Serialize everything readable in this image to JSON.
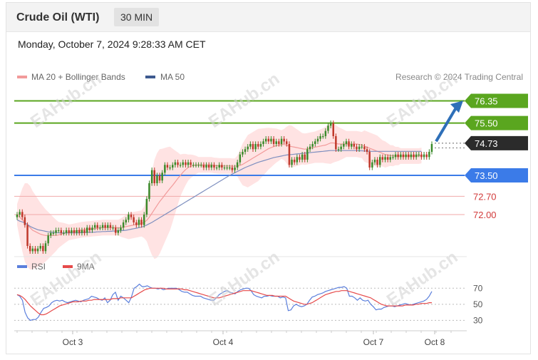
{
  "header": {
    "title": "Crude Oil (WTI)",
    "timeframe": "30 MIN",
    "datetime": "Monday, October 7, 2024 9:28:33 AM CET"
  },
  "legend": {
    "ma20": "MA 20 + Bollinger Bands",
    "ma50": "MA 50",
    "credit": "Research © 2024 Trading Central",
    "rsi": "RSI",
    "rsi_ma": "9MA"
  },
  "watermark": "EAHub.cn",
  "colors": {
    "resistance": "#5aa61f",
    "support": "#3b7be8",
    "last_price": "#2b2b2b",
    "minor_levels": "#f0a9a9",
    "minor_text": "#d23a3a",
    "bollinger_fill": "#ffe3e3",
    "ma20": "#f29a9a",
    "ma50": "#7e8fbf",
    "candle_up": "#3a8a2a",
    "candle_down": "#c0392b",
    "arrow": "#2e6fb8",
    "rsi_line": "#5b7fdc",
    "rsi_ma_line": "#e64a4a"
  },
  "chart_data": [
    {
      "type": "candlestick",
      "ylim": [
        70.8,
        76.8
      ],
      "xticks": [
        "Oct 3",
        "Oct 4",
        "Oct 7",
        "Oct 8"
      ],
      "levels": [
        {
          "value": 76.35,
          "label": "76.35",
          "kind": "resistance"
        },
        {
          "value": 75.5,
          "label": "75.50",
          "kind": "resistance"
        },
        {
          "value": 74.73,
          "label": "74.73",
          "kind": "last"
        },
        {
          "value": 73.5,
          "label": "73.50",
          "kind": "support"
        },
        {
          "value": 72.7,
          "label": "72.70",
          "kind": "minor"
        },
        {
          "value": 72.0,
          "label": "72.00",
          "kind": "minor"
        }
      ],
      "close": [
        72.0,
        72.1,
        71.9,
        71.6,
        70.8,
        70.6,
        70.7,
        70.6,
        70.7,
        70.8,
        70.6,
        70.9,
        71.2,
        71.3,
        71.3,
        71.4,
        71.4,
        71.3,
        71.3,
        71.4,
        71.3,
        71.4,
        71.3,
        71.4,
        71.3,
        71.4,
        71.3,
        71.5,
        71.4,
        71.5,
        71.6,
        71.5,
        71.5,
        71.6,
        71.5,
        71.6,
        71.5,
        71.5,
        71.3,
        71.4,
        71.5,
        71.7,
        71.8,
        72.0,
        71.9,
        71.7,
        71.6,
        71.8,
        71.6,
        72.0,
        72.6,
        73.2,
        73.7,
        73.2,
        73.5,
        73.3,
        73.6,
        73.9,
        73.8,
        73.8,
        73.9,
        74.0,
        73.9,
        73.9,
        74.0,
        73.9,
        74.0,
        73.9,
        73.9,
        73.9,
        73.9,
        73.9,
        73.8,
        73.9,
        73.8,
        73.9,
        73.8,
        73.8,
        73.9,
        73.8,
        73.8,
        73.8,
        73.8,
        73.7,
        73.8,
        74.0,
        74.3,
        74.4,
        74.5,
        74.6,
        74.7,
        74.5,
        74.7,
        74.6,
        74.7,
        74.8,
        74.9,
        74.8,
        74.9,
        74.7,
        74.8,
        74.7,
        74.9,
        74.8,
        74.7,
        73.9,
        74.1,
        74.0,
        74.2,
        74.1,
        74.3,
        74.1,
        74.5,
        74.6,
        74.7,
        74.8,
        74.9,
        75.0,
        75.0,
        75.2,
        75.4,
        75.5,
        75.0,
        74.5,
        74.5,
        74.6,
        74.7,
        74.8,
        74.6,
        74.7,
        74.6,
        74.5,
        74.6,
        74.6,
        74.5,
        74.4,
        73.8,
        74.0,
        74.1,
        73.9,
        74.2,
        74.1,
        74.2,
        74.1,
        74.2,
        74.2,
        74.3,
        74.2,
        74.3,
        74.2,
        74.3,
        74.2,
        74.3,
        74.2,
        74.3,
        74.3,
        74.2,
        74.3,
        74.2,
        74.4,
        74.7
      ],
      "ma20": [
        72.0,
        71.9,
        71.8,
        71.7,
        71.6,
        71.5,
        71.4,
        71.35,
        71.3,
        71.25,
        71.22,
        71.2,
        71.2,
        71.2,
        71.2,
        71.2,
        71.22,
        71.25,
        71.28,
        71.3,
        71.32,
        71.34,
        71.36,
        71.38,
        71.4,
        71.42,
        71.43,
        71.44,
        71.45,
        71.46,
        71.47,
        71.48,
        71.49,
        71.5,
        71.5,
        71.5,
        71.5,
        71.5,
        71.5,
        71.5,
        71.5,
        71.52,
        71.54,
        71.56,
        71.58,
        71.6,
        71.62,
        71.64,
        71.66,
        71.7,
        71.78,
        71.9,
        72.05,
        72.2,
        72.35,
        72.5,
        72.62,
        72.75,
        72.88,
        73.0,
        73.12,
        73.25,
        73.38,
        73.5,
        73.62,
        73.72,
        73.8,
        73.85,
        73.88,
        73.9,
        73.9,
        73.9,
        73.9,
        73.9,
        73.9,
        73.9,
        73.88,
        73.87,
        73.86,
        73.86,
        73.86,
        73.86,
        73.86,
        73.85,
        73.85,
        73.86,
        73.88,
        73.92,
        73.98,
        74.04,
        74.1,
        74.16,
        74.22,
        74.28,
        74.34,
        74.4,
        74.46,
        74.52,
        74.56,
        74.6,
        74.64,
        74.66,
        74.68,
        74.68,
        74.66,
        74.62,
        74.6,
        74.58,
        74.56,
        74.54,
        74.52,
        74.5,
        74.52,
        74.54,
        74.56,
        74.58,
        74.6,
        74.62,
        74.64,
        74.66,
        74.7,
        74.74,
        74.74,
        74.72,
        74.7,
        74.7,
        74.7,
        74.7,
        74.7,
        74.7,
        74.7,
        74.7,
        74.68,
        74.66,
        74.62,
        74.58,
        74.54,
        74.5,
        74.46,
        74.42,
        74.38,
        74.34,
        74.3,
        74.28,
        74.26,
        74.25,
        74.24,
        74.24,
        74.24,
        74.24,
        74.24,
        74.24,
        74.24,
        74.24,
        74.24,
        74.24,
        74.26
      ],
      "ma50": [
        71.8,
        71.75,
        71.72,
        71.68,
        71.62,
        71.55,
        71.5,
        71.46,
        71.42,
        71.4,
        71.38,
        71.36,
        71.34,
        71.33,
        71.32,
        71.31,
        71.3,
        71.3,
        71.3,
        71.3,
        71.3,
        71.3,
        71.3,
        71.3,
        71.3,
        71.31,
        71.31,
        71.32,
        71.32,
        71.33,
        71.33,
        71.34,
        71.34,
        71.35,
        71.35,
        71.36,
        71.36,
        71.37,
        71.37,
        71.38,
        71.38,
        71.39,
        71.4,
        71.42,
        71.44,
        71.46,
        71.48,
        71.5,
        71.52,
        71.55,
        71.6,
        71.65,
        71.7,
        71.76,
        71.82,
        71.88,
        71.94,
        72.0,
        72.06,
        72.12,
        72.18,
        72.24,
        72.3,
        72.36,
        72.42,
        72.48,
        72.54,
        72.6,
        72.66,
        72.72,
        72.78,
        72.84,
        72.9,
        72.96,
        73.02,
        73.08,
        73.14,
        73.2,
        73.26,
        73.32,
        73.38,
        73.44,
        73.5,
        73.55,
        73.6,
        73.65,
        73.7,
        73.75,
        73.8,
        73.84,
        73.88,
        73.92,
        73.96,
        74.0,
        74.03,
        74.06,
        74.09,
        74.12,
        74.15,
        74.18,
        74.2,
        74.22,
        74.24,
        74.26,
        74.28,
        74.29,
        74.3,
        74.31,
        74.32,
        74.33,
        74.34,
        74.35,
        74.36,
        74.37,
        74.38,
        74.39,
        74.4,
        74.41,
        74.42,
        74.43,
        74.44,
        74.45,
        74.45,
        74.45,
        74.45,
        74.45,
        74.45,
        74.45,
        74.45,
        74.45,
        74.45,
        74.45,
        74.44,
        74.44,
        74.43,
        74.43,
        74.42,
        74.42,
        74.42,
        74.42,
        74.42,
        74.42,
        74.42,
        74.42,
        74.42,
        74.42,
        74.42,
        74.42,
        74.42,
        74.42,
        74.42,
        74.42,
        74.42,
        74.42,
        74.42,
        74.42,
        74.42
      ],
      "bb_width": [
        0.4,
        0.8,
        1.2,
        1.5,
        1.6,
        1.6,
        1.5,
        1.4,
        1.3,
        1.2,
        1.1,
        1.0,
        0.9,
        0.8,
        0.7,
        0.6,
        0.5,
        0.45,
        0.4,
        0.35,
        0.3,
        0.3,
        0.3,
        0.3,
        0.3,
        0.3,
        0.3,
        0.3,
        0.3,
        0.3,
        0.3,
        0.3,
        0.3,
        0.3,
        0.3,
        0.3,
        0.3,
        0.3,
        0.3,
        0.3,
        0.35,
        0.4,
        0.45,
        0.5,
        0.5,
        0.5,
        0.5,
        0.5,
        0.5,
        0.6,
        0.8,
        1.2,
        1.6,
        1.9,
        2.0,
        2.0,
        1.9,
        1.8,
        1.7,
        1.6,
        1.4,
        1.2,
        1.0,
        0.8,
        0.7,
        0.6,
        0.5,
        0.45,
        0.4,
        0.35,
        0.3,
        0.3,
        0.3,
        0.3,
        0.3,
        0.3,
        0.3,
        0.3,
        0.3,
        0.3,
        0.3,
        0.3,
        0.3,
        0.3,
        0.3,
        0.4,
        0.6,
        0.8,
        0.9,
        1.0,
        1.0,
        1.0,
        1.0,
        1.0,
        0.95,
        0.9,
        0.85,
        0.8,
        0.75,
        0.7,
        0.65,
        0.6,
        0.55,
        0.6,
        0.7,
        0.8,
        0.8,
        0.75,
        0.7,
        0.65,
        0.6,
        0.6,
        0.6,
        0.6,
        0.6,
        0.6,
        0.62,
        0.64,
        0.66,
        0.7,
        0.75,
        0.8,
        0.75,
        0.7,
        0.65,
        0.6,
        0.55,
        0.5,
        0.5,
        0.5,
        0.5,
        0.5,
        0.5,
        0.5,
        0.6,
        0.6,
        0.6,
        0.6,
        0.6,
        0.6,
        0.55,
        0.5,
        0.5,
        0.45,
        0.4,
        0.4,
        0.35,
        0.35,
        0.3,
        0.3,
        0.3,
        0.3,
        0.3,
        0.3,
        0.3,
        0.3,
        0.3,
        0.3,
        0.35
      ]
    },
    {
      "type": "line",
      "ylim": [
        25,
        80
      ],
      "yticks": [
        "70",
        "50",
        "30"
      ],
      "series": [
        {
          "name": "RSI",
          "values": [
            62,
            60,
            55,
            40,
            33,
            30,
            31,
            31,
            34,
            40,
            45,
            46,
            48,
            52,
            54,
            55,
            54,
            55,
            53,
            52,
            53,
            54,
            55,
            54,
            53,
            55,
            56,
            57,
            60,
            59,
            58,
            56,
            55,
            58,
            52,
            55,
            62,
            65,
            55,
            60,
            58,
            55,
            52,
            59,
            70,
            72,
            75,
            72,
            72,
            73,
            71,
            70,
            70,
            69,
            70,
            68,
            69,
            70,
            70,
            70,
            70,
            68,
            66,
            65,
            65,
            63,
            61,
            60,
            60,
            60,
            58,
            57,
            56,
            55,
            55,
            58,
            62,
            64,
            66,
            67,
            65,
            64,
            63,
            66,
            68,
            69,
            70,
            70,
            67,
            62,
            60,
            59,
            58,
            60,
            60,
            61,
            60,
            60,
            60,
            58,
            59,
            58,
            42,
            43,
            48,
            50,
            48,
            47,
            48,
            50,
            55,
            59,
            60,
            62,
            63,
            64,
            66,
            67,
            68,
            69,
            70,
            71,
            71,
            72,
            70,
            60,
            60,
            58,
            55,
            58,
            55,
            54,
            55,
            50,
            47,
            43,
            44,
            44,
            46,
            47,
            48,
            48,
            47,
            48,
            49,
            50,
            51,
            50,
            49,
            50,
            51,
            52,
            53,
            54,
            56,
            60,
            66
          ]
        },
        {
          "name": "9MA",
          "values": [
            62,
            61,
            59,
            56,
            52,
            48,
            45,
            42,
            39,
            37,
            37,
            38,
            40,
            42,
            44,
            46,
            48,
            49,
            50,
            51,
            52,
            53,
            53,
            53,
            54,
            54,
            54,
            55,
            55,
            56,
            56,
            56,
            56,
            56,
            56,
            56,
            57,
            57,
            57,
            58,
            58,
            58,
            58,
            58,
            60,
            62,
            64,
            66,
            68,
            69,
            70,
            70,
            70,
            70,
            70,
            70,
            69,
            69,
            69,
            69,
            69,
            69,
            69,
            68,
            68,
            67,
            66,
            65,
            64,
            63,
            62,
            61,
            60,
            59,
            58,
            58,
            58,
            59,
            60,
            61,
            62,
            63,
            64,
            65,
            66,
            67,
            67,
            67,
            67,
            66,
            65,
            64,
            63,
            62,
            61,
            61,
            61,
            60,
            60,
            60,
            60,
            60,
            58,
            56,
            54,
            53,
            52,
            51,
            50,
            50,
            51,
            52,
            54,
            56,
            58,
            60,
            62,
            63,
            64,
            65,
            66,
            66,
            67,
            67,
            67,
            66,
            65,
            64,
            63,
            62,
            61,
            60,
            59,
            58,
            56,
            54,
            52,
            50,
            49,
            48,
            48,
            48,
            48,
            48,
            48,
            48,
            49,
            49,
            49,
            49,
            50,
            50,
            51,
            51,
            51,
            52,
            52
          ]
        }
      ]
    }
  ]
}
